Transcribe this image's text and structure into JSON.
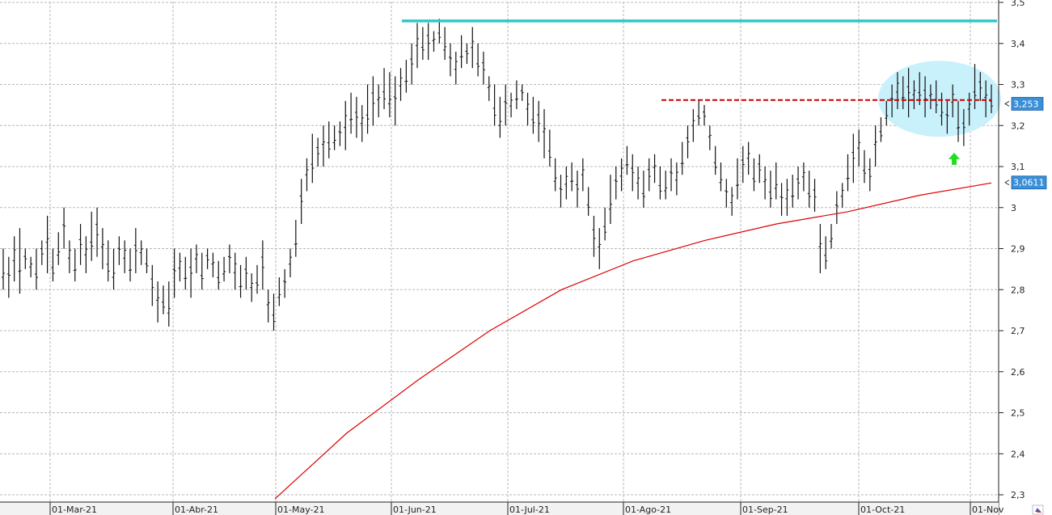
{
  "chart_data": {
    "type": "ohlc",
    "title": "",
    "xlabel": "",
    "ylabel": "",
    "ylim": [
      2.29,
      3.51
    ],
    "y_ticks": [
      "3,5",
      "3,4",
      "3,3",
      "3,2",
      "3,1",
      "3",
      "2,9",
      "2,8",
      "2,7",
      "2,6",
      "2,5",
      "2,4",
      "2,3"
    ],
    "y_tick_values": [
      3.5,
      3.4,
      3.3,
      3.2,
      3.1,
      3.0,
      2.9,
      2.8,
      2.7,
      2.6,
      2.5,
      2.4,
      2.3
    ],
    "x_ticks": [
      "01-Mar-21",
      "01-Abr-21",
      "01-May-21",
      "01-Jun-21",
      "01-Jul-21",
      "01-Ago-21",
      "01-Sep-21",
      "01-Oct-21",
      "01-Nov"
    ],
    "grid": true,
    "price_bars": [
      [
        2.8,
        2.9
      ],
      [
        2.78,
        2.88
      ],
      [
        2.82,
        2.93
      ],
      [
        2.79,
        2.95
      ],
      [
        2.85,
        2.9
      ],
      [
        2.83,
        2.88
      ],
      [
        2.8,
        2.9
      ],
      [
        2.86,
        2.92
      ],
      [
        2.84,
        2.98
      ],
      [
        2.82,
        2.9
      ],
      [
        2.86,
        2.94
      ],
      [
        2.9,
        3.0
      ],
      [
        2.84,
        2.92
      ],
      [
        2.82,
        2.9
      ],
      [
        2.86,
        2.96
      ],
      [
        2.84,
        2.93
      ],
      [
        2.87,
        2.99
      ],
      [
        2.88,
        3.0
      ],
      [
        2.85,
        2.95
      ],
      [
        2.82,
        2.92
      ],
      [
        2.8,
        2.9
      ],
      [
        2.86,
        2.93
      ],
      [
        2.84,
        2.92
      ],
      [
        2.82,
        2.9
      ],
      [
        2.84,
        2.95
      ],
      [
        2.86,
        2.92
      ],
      [
        2.84,
        2.9
      ],
      [
        2.76,
        2.86
      ],
      [
        2.72,
        2.82
      ],
      [
        2.74,
        2.81
      ],
      [
        2.71,
        2.82
      ],
      [
        2.78,
        2.9
      ],
      [
        2.82,
        2.89
      ],
      [
        2.8,
        2.88
      ],
      [
        2.78,
        2.9
      ],
      [
        2.84,
        2.91
      ],
      [
        2.8,
        2.89
      ],
      [
        2.85,
        2.9
      ],
      [
        2.83,
        2.89
      ],
      [
        2.8,
        2.87
      ],
      [
        2.82,
        2.88
      ],
      [
        2.84,
        2.91
      ],
      [
        2.8,
        2.89
      ],
      [
        2.78,
        2.86
      ],
      [
        2.8,
        2.88
      ],
      [
        2.77,
        2.84
      ],
      [
        2.79,
        2.86
      ],
      [
        2.8,
        2.92
      ],
      [
        2.72,
        2.8
      ],
      [
        2.7,
        2.79
      ],
      [
        2.76,
        2.83
      ],
      [
        2.78,
        2.85
      ],
      [
        2.83,
        2.9
      ],
      [
        2.88,
        2.97
      ],
      [
        2.96,
        3.07
      ],
      [
        3.04,
        3.12
      ],
      [
        3.06,
        3.18
      ],
      [
        3.1,
        3.17
      ],
      [
        3.1,
        3.2
      ],
      [
        3.12,
        3.21
      ],
      [
        3.14,
        3.2
      ],
      [
        3.15,
        3.21
      ],
      [
        3.14,
        3.26
      ],
      [
        3.18,
        3.28
      ],
      [
        3.17,
        3.27
      ],
      [
        3.16,
        3.25
      ],
      [
        3.18,
        3.3
      ],
      [
        3.2,
        3.32
      ],
      [
        3.22,
        3.3
      ],
      [
        3.24,
        3.34
      ],
      [
        3.22,
        3.33
      ],
      [
        3.2,
        3.32
      ],
      [
        3.26,
        3.34
      ],
      [
        3.28,
        3.36
      ],
      [
        3.3,
        3.4
      ],
      [
        3.34,
        3.45
      ],
      [
        3.36,
        3.44
      ],
      [
        3.36,
        3.45
      ],
      [
        3.38,
        3.43
      ],
      [
        3.4,
        3.46
      ],
      [
        3.36,
        3.44
      ],
      [
        3.32,
        3.4
      ],
      [
        3.3,
        3.38
      ],
      [
        3.34,
        3.42
      ],
      [
        3.35,
        3.4
      ],
      [
        3.34,
        3.44
      ],
      [
        3.32,
        3.4
      ],
      [
        3.3,
        3.38
      ],
      [
        3.26,
        3.32
      ],
      [
        3.2,
        3.3
      ],
      [
        3.17,
        3.27
      ],
      [
        3.2,
        3.3
      ],
      [
        3.22,
        3.28
      ],
      [
        3.24,
        3.31
      ],
      [
        3.26,
        3.3
      ],
      [
        3.2,
        3.28
      ],
      [
        3.18,
        3.27
      ],
      [
        3.16,
        3.26
      ],
      [
        3.12,
        3.24
      ],
      [
        3.1,
        3.19
      ],
      [
        3.04,
        3.12
      ],
      [
        3.0,
        3.08
      ],
      [
        3.02,
        3.1
      ],
      [
        3.04,
        3.11
      ],
      [
        3.0,
        3.09
      ],
      [
        3.04,
        3.12
      ],
      [
        2.98,
        3.05
      ],
      [
        2.88,
        2.98
      ],
      [
        2.85,
        2.95
      ],
      [
        2.92,
        3.0
      ],
      [
        2.96,
        3.08
      ],
      [
        3.02,
        3.1
      ],
      [
        3.04,
        3.12
      ],
      [
        3.08,
        3.15
      ],
      [
        3.04,
        3.13
      ],
      [
        3.02,
        3.1
      ],
      [
        3.0,
        3.09
      ],
      [
        3.04,
        3.12
      ],
      [
        3.06,
        3.13
      ],
      [
        3.02,
        3.1
      ],
      [
        3.02,
        3.09
      ],
      [
        3.04,
        3.12
      ],
      [
        3.03,
        3.11
      ],
      [
        3.08,
        3.16
      ],
      [
        3.12,
        3.2
      ],
      [
        3.16,
        3.24
      ],
      [
        3.2,
        3.26
      ],
      [
        3.2,
        3.25
      ],
      [
        3.14,
        3.2
      ],
      [
        3.08,
        3.15
      ],
      [
        3.04,
        3.11
      ],
      [
        3.0,
        3.07
      ],
      [
        2.98,
        3.05
      ],
      [
        3.02,
        3.12
      ],
      [
        3.06,
        3.15
      ],
      [
        3.08,
        3.16
      ],
      [
        3.04,
        3.12
      ],
      [
        3.06,
        3.13
      ],
      [
        3.02,
        3.1
      ],
      [
        3.0,
        3.09
      ],
      [
        3.02,
        3.11
      ],
      [
        2.98,
        3.06
      ],
      [
        2.98,
        3.07
      ],
      [
        3.0,
        3.08
      ],
      [
        3.02,
        3.1
      ],
      [
        3.04,
        3.11
      ],
      [
        3.0,
        3.09
      ],
      [
        2.99,
        3.07
      ],
      [
        2.84,
        2.96
      ],
      [
        2.85,
        2.93
      ],
      [
        2.9,
        2.96
      ],
      [
        2.96,
        3.04
      ],
      [
        3.0,
        3.06
      ],
      [
        3.04,
        3.13
      ],
      [
        3.06,
        3.18
      ],
      [
        3.1,
        3.19
      ],
      [
        3.06,
        3.14
      ],
      [
        3.04,
        3.12
      ],
      [
        3.1,
        3.2
      ],
      [
        3.16,
        3.22
      ],
      [
        3.2,
        3.26
      ],
      [
        3.22,
        3.3
      ],
      [
        3.24,
        3.33
      ],
      [
        3.24,
        3.32
      ],
      [
        3.22,
        3.34
      ],
      [
        3.24,
        3.31
      ],
      [
        3.25,
        3.33
      ],
      [
        3.22,
        3.32
      ],
      [
        3.24,
        3.3
      ],
      [
        3.23,
        3.31
      ],
      [
        3.2,
        3.28
      ],
      [
        3.18,
        3.26
      ],
      [
        3.22,
        3.3
      ],
      [
        3.16,
        3.26
      ],
      [
        3.15,
        3.24
      ],
      [
        3.2,
        3.28
      ],
      [
        3.24,
        3.35
      ],
      [
        3.26,
        3.33
      ],
      [
        3.22,
        3.31
      ],
      [
        3.23,
        3.3
      ]
    ],
    "moving_average": [
      [
        0.0,
        2.29
      ],
      [
        0.1,
        2.45
      ],
      [
        0.2,
        2.58
      ],
      [
        0.3,
        2.7
      ],
      [
        0.4,
        2.8
      ],
      [
        0.5,
        2.87
      ],
      [
        0.6,
        2.92
      ],
      [
        0.7,
        2.96
      ],
      [
        0.8,
        2.99
      ],
      [
        0.9,
        3.03
      ],
      [
        1.0,
        3.06
      ]
    ],
    "resistance_level": 3.455,
    "support_level": 3.262,
    "annotations": {
      "last_price_label": "3,253",
      "last_price_value": 3.253,
      "ma_label": "3,0611",
      "ma_value": 3.0611
    },
    "colors": {
      "bars": "#111111",
      "moving_average": "#dd0000",
      "resistance": "#33c6c6",
      "support": "#cc0000",
      "highlight": "#c8f1fb",
      "arrow": "#22dd22",
      "badge": "#3a8fd9",
      "grid": "#b8b8b8"
    }
  }
}
